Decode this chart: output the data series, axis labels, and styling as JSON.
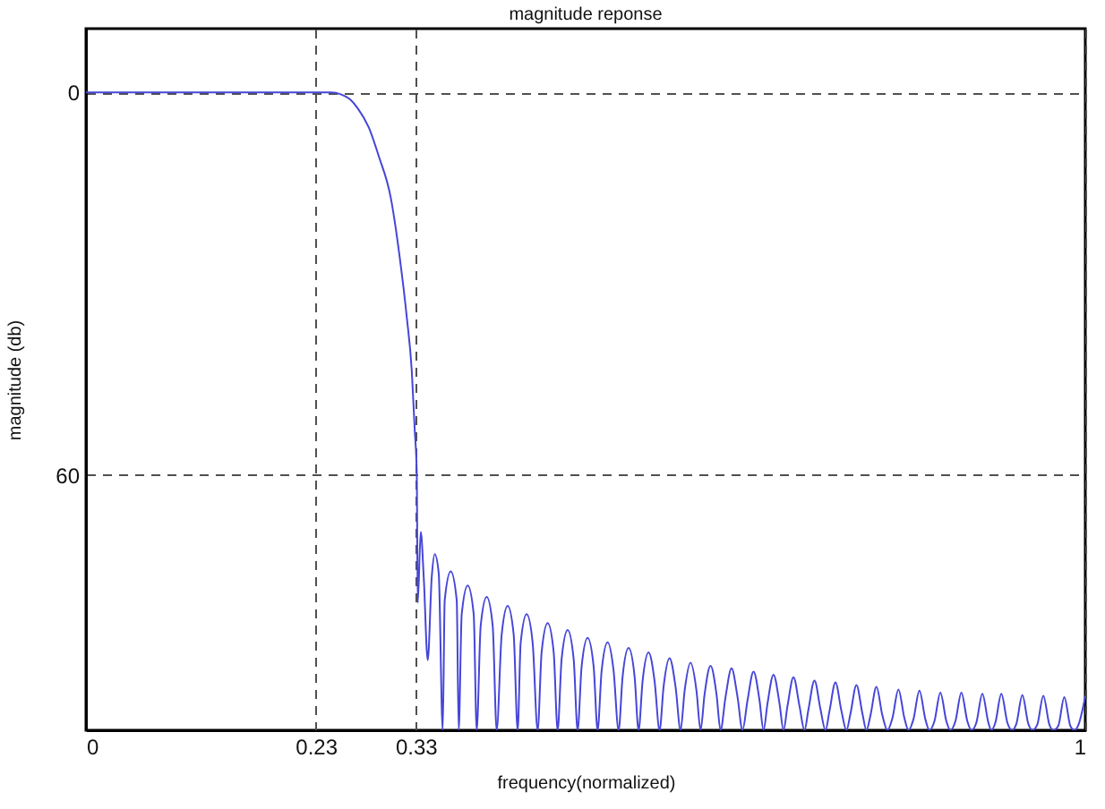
{
  "chart_data": {
    "type": "line",
    "title": "magnitude reponse",
    "xlabel": "frequency(normalized)",
    "ylabel": "magnitude (db)",
    "x": [
      0,
      0.245,
      0.255,
      0.265,
      0.272,
      0.283,
      0.293,
      0.305,
      0.314,
      0.321,
      0.326,
      0.329,
      0.331,
      0.332,
      0.335,
      0.338,
      0.342,
      0.346,
      0.349,
      0.353,
      0.357,
      0.359,
      0.365,
      0.371,
      0.373,
      0.376,
      0.382,
      0.388,
      0.391,
      0.395,
      0.401,
      0.407,
      0.411,
      0.416,
      0.422,
      0.428,
      0.432,
      0.435,
      0.441,
      0.447,
      0.452,
      0.456,
      0.462,
      0.468,
      0.472,
      0.476,
      0.482,
      0.488,
      0.492,
      0.496,
      0.502,
      0.508,
      0.512,
      0.516,
      0.522,
      0.528,
      0.533,
      0.537,
      0.543,
      0.549,
      0.553,
      0.557,
      0.563,
      0.569,
      0.574,
      0.578,
      0.584,
      0.59,
      0.595,
      0.599,
      0.605,
      0.611,
      0.615,
      0.619,
      0.625,
      0.631,
      0.635,
      0.64,
      0.646,
      0.652,
      0.657,
      0.662,
      0.668,
      0.674,
      0.678,
      0.682,
      0.688,
      0.694,
      0.698,
      0.702,
      0.708,
      0.714,
      0.719,
      0.723,
      0.729,
      0.735,
      0.74,
      0.744,
      0.75,
      0.756,
      0.761,
      0.765,
      0.771,
      0.777,
      0.781,
      0.785,
      0.791,
      0.797,
      0.802,
      0.807,
      0.813,
      0.819,
      0.823,
      0.828,
      0.834,
      0.84,
      0.844,
      0.849,
      0.855,
      0.861,
      0.865,
      0.87,
      0.876,
      0.882,
      0.886,
      0.891,
      0.897,
      0.903,
      0.906,
      0.91,
      0.916,
      0.922,
      0.927,
      0.931,
      0.937,
      0.943,
      0.947,
      0.952,
      0.958,
      0.964,
      0.968,
      0.973,
      0.979,
      0.985,
      0.989,
      0.993,
      1
    ],
    "series": [
      {
        "color": "#4646d8",
        "values": [
          0,
          0,
          0.3,
          1.2,
          2.5,
          5.5,
          10,
          16.5,
          25.9,
          35.2,
          43.6,
          53,
          59.5,
          80,
          68.9,
          76,
          89,
          76,
          72.4,
          75.4,
          100,
          79.6,
          75.1,
          79.6,
          100,
          81.8,
          77.3,
          81.8,
          100,
          83.6,
          79.1,
          83.6,
          100,
          85,
          80.5,
          85,
          100,
          86.3,
          81.8,
          86.3,
          100,
          87.7,
          83.2,
          87.7,
          100,
          88.8,
          84.3,
          88.8,
          100,
          90,
          85.5,
          90,
          100,
          90.7,
          86.2,
          90.7,
          100,
          91.6,
          87.1,
          91.6,
          100,
          92.3,
          87.8,
          92.3,
          100,
          93.2,
          88.7,
          93.2,
          100,
          93.9,
          89.4,
          93.9,
          100,
          94.4,
          89.9,
          94.4,
          100,
          94.8,
          90.3,
          94.8,
          100,
          95.3,
          90.8,
          95.3,
          100,
          95.8,
          91.3,
          95.8,
          100,
          96.2,
          91.7,
          96.2,
          100,
          96.7,
          92.2,
          96.7,
          100,
          97,
          92.5,
          97,
          100,
          97.4,
          92.9,
          97.4,
          100,
          97.7,
          93.2,
          97.7,
          100,
          98.1,
          93.6,
          98.1,
          100,
          98.3,
          93.8,
          98.3,
          100,
          98.6,
          94.1,
          98.6,
          100,
          98.6,
          94.1,
          98.6,
          100,
          98.8,
          94.3,
          98.8,
          100,
          98.8,
          94.3,
          98.8,
          100,
          99,
          94.5,
          99,
          100,
          99.1,
          94.6,
          99.1,
          100,
          99.3,
          94.8,
          99.3,
          100,
          99.2,
          94.7
        ]
      }
    ],
    "xlim": [
      0,
      1
    ],
    "ylim": [
      100,
      -10
    ],
    "xticks": [
      0,
      0.23,
      0.33,
      1
    ],
    "yticks": [
      0,
      60
    ],
    "grid": true,
    "marker": "none",
    "line_style": "solid"
  }
}
